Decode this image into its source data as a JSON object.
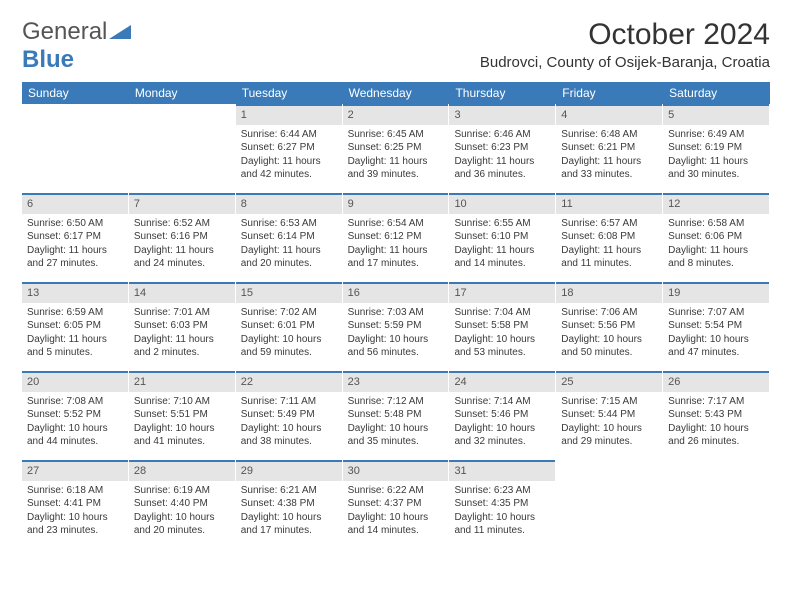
{
  "brand": {
    "word1": "General",
    "word2": "Blue"
  },
  "title": "October 2024",
  "location": "Budrovci, County of Osijek-Baranja, Croatia",
  "colors": {
    "header_bg": "#3a7ab8",
    "header_text": "#ffffff",
    "daynum_bg": "#e5e5e5",
    "daynum_border": "#3a7ab8",
    "body_text": "#3a3a3a",
    "page_bg": "#ffffff"
  },
  "typography": {
    "title_fontsize": 30,
    "location_fontsize": 15,
    "header_fontsize": 12,
    "daynum_fontsize": 11,
    "body_fontsize": 10
  },
  "day_labels": [
    "Sunday",
    "Monday",
    "Tuesday",
    "Wednesday",
    "Thursday",
    "Friday",
    "Saturday"
  ],
  "weeks": [
    [
      null,
      null,
      {
        "n": "1",
        "sr": "Sunrise: 6:44 AM",
        "ss": "Sunset: 6:27 PM",
        "dl": "Daylight: 11 hours and 42 minutes."
      },
      {
        "n": "2",
        "sr": "Sunrise: 6:45 AM",
        "ss": "Sunset: 6:25 PM",
        "dl": "Daylight: 11 hours and 39 minutes."
      },
      {
        "n": "3",
        "sr": "Sunrise: 6:46 AM",
        "ss": "Sunset: 6:23 PM",
        "dl": "Daylight: 11 hours and 36 minutes."
      },
      {
        "n": "4",
        "sr": "Sunrise: 6:48 AM",
        "ss": "Sunset: 6:21 PM",
        "dl": "Daylight: 11 hours and 33 minutes."
      },
      {
        "n": "5",
        "sr": "Sunrise: 6:49 AM",
        "ss": "Sunset: 6:19 PM",
        "dl": "Daylight: 11 hours and 30 minutes."
      }
    ],
    [
      {
        "n": "6",
        "sr": "Sunrise: 6:50 AM",
        "ss": "Sunset: 6:17 PM",
        "dl": "Daylight: 11 hours and 27 minutes."
      },
      {
        "n": "7",
        "sr": "Sunrise: 6:52 AM",
        "ss": "Sunset: 6:16 PM",
        "dl": "Daylight: 11 hours and 24 minutes."
      },
      {
        "n": "8",
        "sr": "Sunrise: 6:53 AM",
        "ss": "Sunset: 6:14 PM",
        "dl": "Daylight: 11 hours and 20 minutes."
      },
      {
        "n": "9",
        "sr": "Sunrise: 6:54 AM",
        "ss": "Sunset: 6:12 PM",
        "dl": "Daylight: 11 hours and 17 minutes."
      },
      {
        "n": "10",
        "sr": "Sunrise: 6:55 AM",
        "ss": "Sunset: 6:10 PM",
        "dl": "Daylight: 11 hours and 14 minutes."
      },
      {
        "n": "11",
        "sr": "Sunrise: 6:57 AM",
        "ss": "Sunset: 6:08 PM",
        "dl": "Daylight: 11 hours and 11 minutes."
      },
      {
        "n": "12",
        "sr": "Sunrise: 6:58 AM",
        "ss": "Sunset: 6:06 PM",
        "dl": "Daylight: 11 hours and 8 minutes."
      }
    ],
    [
      {
        "n": "13",
        "sr": "Sunrise: 6:59 AM",
        "ss": "Sunset: 6:05 PM",
        "dl": "Daylight: 11 hours and 5 minutes."
      },
      {
        "n": "14",
        "sr": "Sunrise: 7:01 AM",
        "ss": "Sunset: 6:03 PM",
        "dl": "Daylight: 11 hours and 2 minutes."
      },
      {
        "n": "15",
        "sr": "Sunrise: 7:02 AM",
        "ss": "Sunset: 6:01 PM",
        "dl": "Daylight: 10 hours and 59 minutes."
      },
      {
        "n": "16",
        "sr": "Sunrise: 7:03 AM",
        "ss": "Sunset: 5:59 PM",
        "dl": "Daylight: 10 hours and 56 minutes."
      },
      {
        "n": "17",
        "sr": "Sunrise: 7:04 AM",
        "ss": "Sunset: 5:58 PM",
        "dl": "Daylight: 10 hours and 53 minutes."
      },
      {
        "n": "18",
        "sr": "Sunrise: 7:06 AM",
        "ss": "Sunset: 5:56 PM",
        "dl": "Daylight: 10 hours and 50 minutes."
      },
      {
        "n": "19",
        "sr": "Sunrise: 7:07 AM",
        "ss": "Sunset: 5:54 PM",
        "dl": "Daylight: 10 hours and 47 minutes."
      }
    ],
    [
      {
        "n": "20",
        "sr": "Sunrise: 7:08 AM",
        "ss": "Sunset: 5:52 PM",
        "dl": "Daylight: 10 hours and 44 minutes."
      },
      {
        "n": "21",
        "sr": "Sunrise: 7:10 AM",
        "ss": "Sunset: 5:51 PM",
        "dl": "Daylight: 10 hours and 41 minutes."
      },
      {
        "n": "22",
        "sr": "Sunrise: 7:11 AM",
        "ss": "Sunset: 5:49 PM",
        "dl": "Daylight: 10 hours and 38 minutes."
      },
      {
        "n": "23",
        "sr": "Sunrise: 7:12 AM",
        "ss": "Sunset: 5:48 PM",
        "dl": "Daylight: 10 hours and 35 minutes."
      },
      {
        "n": "24",
        "sr": "Sunrise: 7:14 AM",
        "ss": "Sunset: 5:46 PM",
        "dl": "Daylight: 10 hours and 32 minutes."
      },
      {
        "n": "25",
        "sr": "Sunrise: 7:15 AM",
        "ss": "Sunset: 5:44 PM",
        "dl": "Daylight: 10 hours and 29 minutes."
      },
      {
        "n": "26",
        "sr": "Sunrise: 7:17 AM",
        "ss": "Sunset: 5:43 PM",
        "dl": "Daylight: 10 hours and 26 minutes."
      }
    ],
    [
      {
        "n": "27",
        "sr": "Sunrise: 6:18 AM",
        "ss": "Sunset: 4:41 PM",
        "dl": "Daylight: 10 hours and 23 minutes."
      },
      {
        "n": "28",
        "sr": "Sunrise: 6:19 AM",
        "ss": "Sunset: 4:40 PM",
        "dl": "Daylight: 10 hours and 20 minutes."
      },
      {
        "n": "29",
        "sr": "Sunrise: 6:21 AM",
        "ss": "Sunset: 4:38 PM",
        "dl": "Daylight: 10 hours and 17 minutes."
      },
      {
        "n": "30",
        "sr": "Sunrise: 6:22 AM",
        "ss": "Sunset: 4:37 PM",
        "dl": "Daylight: 10 hours and 14 minutes."
      },
      {
        "n": "31",
        "sr": "Sunrise: 6:23 AM",
        "ss": "Sunset: 4:35 PM",
        "dl": "Daylight: 10 hours and 11 minutes."
      },
      null,
      null
    ]
  ]
}
